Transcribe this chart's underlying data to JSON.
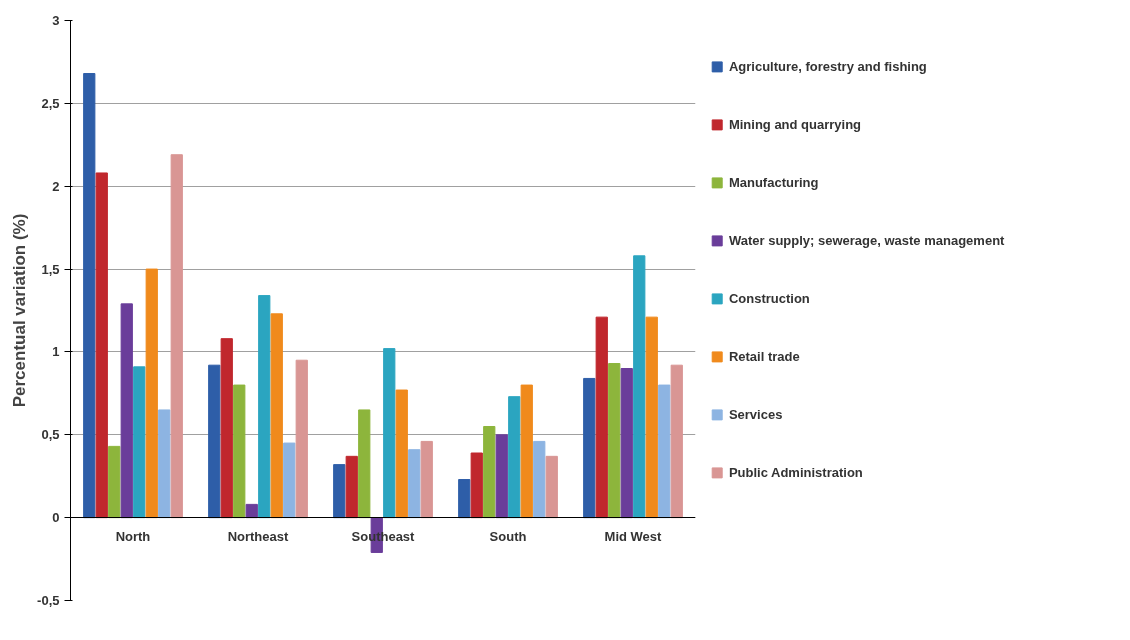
{
  "chart_data": {
    "type": "bar",
    "ylabel": "Percentual variation (%)",
    "categories": [
      "North",
      "Northeast",
      "Southeast",
      "South",
      "Mid West"
    ],
    "series": [
      {
        "name": "Agriculture, forestry and fishing",
        "color": "#2e5ea8",
        "values": [
          2.68,
          0.92,
          0.32,
          0.23,
          0.84
        ]
      },
      {
        "name": "Mining and quarrying",
        "color": "#c0272d",
        "values": [
          2.08,
          1.08,
          0.37,
          0.39,
          1.21
        ]
      },
      {
        "name": "Manufacturing",
        "color": "#8db53c",
        "values": [
          0.43,
          0.8,
          0.65,
          0.55,
          0.93
        ]
      },
      {
        "name": "Water supply; sewerage, waste management",
        "color": "#6a3d9a",
        "values": [
          1.29,
          0.08,
          -0.21,
          0.5,
          0.9
        ]
      },
      {
        "name": "Construction",
        "color": "#2ba5c0",
        "values": [
          0.91,
          1.34,
          1.02,
          0.73,
          1.58
        ]
      },
      {
        "name": "Retail trade",
        "color": "#f08a1c",
        "values": [
          1.5,
          1.23,
          0.77,
          0.8,
          1.21
        ]
      },
      {
        "name": "Services",
        "color": "#8db4e2",
        "values": [
          0.65,
          0.45,
          0.41,
          0.46,
          0.8
        ]
      },
      {
        "name": "Public Administration",
        "color": "#d99694",
        "values": [
          2.19,
          0.95,
          0.46,
          0.37,
          0.92
        ]
      }
    ],
    "ylim": [
      -0.5,
      3
    ],
    "yticks": [
      {
        "value": -0.5,
        "label": "-0,5"
      },
      0,
      {
        "value": 0.5,
        "label": "0,5"
      },
      1,
      {
        "value": 1.5,
        "label": "1,5"
      },
      2,
      {
        "value": 2.5,
        "label": "2,5"
      },
      3
    ],
    "grid": "y",
    "legend": "right"
  }
}
